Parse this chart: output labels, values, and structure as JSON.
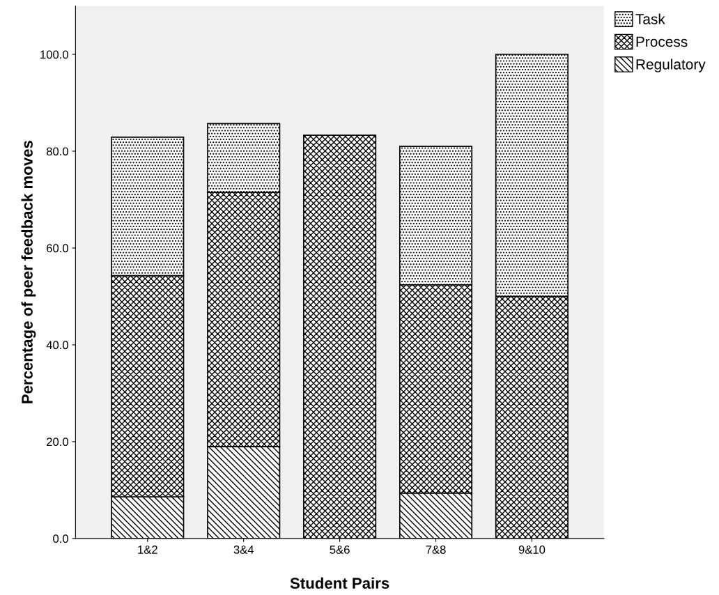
{
  "chart_data": {
    "type": "bar",
    "stacked": true,
    "xlabel": "Student Pairs",
    "ylabel": "Percentage of peer feedback moves",
    "categories": [
      "1&2",
      "3&4",
      "5&6",
      "7&8",
      "9&10"
    ],
    "series": [
      {
        "name": "Regulatory",
        "color": "#000000",
        "values": [
          8.6,
          19.0,
          0,
          9.4,
          0
        ]
      },
      {
        "name": "Process",
        "color": "#000000",
        "values": [
          45.7,
          52.5,
          83.3,
          43.0,
          50.0
        ]
      },
      {
        "name": "Task",
        "color": "#000000",
        "values": [
          28.6,
          14.2,
          0,
          28.6,
          50.0
        ]
      }
    ],
    "ylim": [
      0,
      110
    ],
    "yticks": [
      {
        "value": 0,
        "label": "0.0"
      },
      {
        "value": 20,
        "label": "20.0"
      },
      {
        "value": 40,
        "label": "40.0"
      },
      {
        "value": 60,
        "label": "60.0"
      },
      {
        "value": 80,
        "label": "80.0"
      },
      {
        "value": 100,
        "label": "100.0"
      }
    ],
    "grid": false,
    "legend": "top right"
  }
}
